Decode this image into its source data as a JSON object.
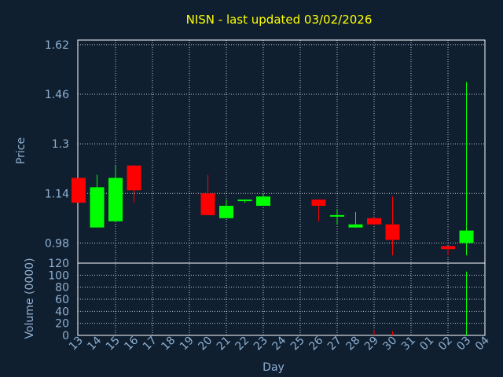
{
  "chart_data": [
    {
      "type": "candlestick",
      "title": "NISN - last updated 03/02/2026",
      "ylabel": "Price",
      "ylim": [
        0.915,
        1.635
      ],
      "y_ticks": [
        "1.62",
        "1.46",
        "1.3",
        "1.14",
        "0.98"
      ],
      "y_tick_values": [
        1.62,
        1.46,
        1.3,
        1.14,
        0.98
      ],
      "grid": true,
      "up_color": "#00ff00",
      "down_color": "#ff0000",
      "candles": [
        {
          "day": "13",
          "open": 1.19,
          "high": 1.19,
          "low": 1.11,
          "close": 1.11
        },
        {
          "day": "14",
          "open": 1.03,
          "high": 1.2,
          "low": 1.03,
          "close": 1.16
        },
        {
          "day": "15",
          "open": 1.05,
          "high": 1.23,
          "low": 1.05,
          "close": 1.19
        },
        {
          "day": "16",
          "open": 1.23,
          "high": 1.23,
          "low": 1.11,
          "close": 1.15
        },
        {
          "day": "20",
          "open": 1.14,
          "high": 1.2,
          "low": 1.07,
          "close": 1.07
        },
        {
          "day": "21",
          "open": 1.06,
          "high": 1.12,
          "low": 1.06,
          "close": 1.1
        },
        {
          "day": "22",
          "open": 1.12,
          "high": 1.12,
          "low": 1.11,
          "close": 1.12
        },
        {
          "day": "23",
          "open": 1.1,
          "high": 1.14,
          "low": 1.1,
          "close": 1.13
        },
        {
          "day": "26",
          "open": 1.12,
          "high": 1.12,
          "low": 1.05,
          "close": 1.1
        },
        {
          "day": "27",
          "open": 1.07,
          "high": 1.09,
          "low": 1.04,
          "close": 1.07
        },
        {
          "day": "28",
          "open": 1.03,
          "high": 1.08,
          "low": 1.03,
          "close": 1.04
        },
        {
          "day": "29",
          "open": 1.06,
          "high": 1.06,
          "low": 1.04,
          "close": 1.04
        },
        {
          "day": "30",
          "open": 1.04,
          "high": 1.13,
          "low": 0.94,
          "close": 0.99
        },
        {
          "day": "02",
          "open": 0.97,
          "high": 0.97,
          "low": 0.94,
          "close": 0.96
        },
        {
          "day": "03",
          "open": 0.98,
          "high": 1.5,
          "low": 0.94,
          "close": 1.02
        }
      ]
    },
    {
      "type": "bar",
      "ylabel": "Volume (0000)",
      "xlabel": "Day",
      "ylim": [
        0,
        120
      ],
      "y_ticks": [
        "120",
        "100",
        "80",
        "60",
        "40",
        "20",
        "0"
      ],
      "y_tick_values": [
        120,
        100,
        80,
        60,
        40,
        20,
        0
      ],
      "grid": true,
      "categories": [
        "13",
        "14",
        "15",
        "16",
        "17",
        "18",
        "19",
        "20",
        "21",
        "22",
        "23",
        "24",
        "25",
        "26",
        "27",
        "28",
        "29",
        "30",
        "31",
        "01",
        "02",
        "03",
        "04"
      ],
      "volume_bars": [
        {
          "day": "29",
          "value": 9,
          "color": "#ff0000"
        },
        {
          "day": "30",
          "value": 7,
          "color": "#ff0000"
        },
        {
          "day": "03",
          "value": 106,
          "color": "#00ff00"
        }
      ]
    }
  ]
}
